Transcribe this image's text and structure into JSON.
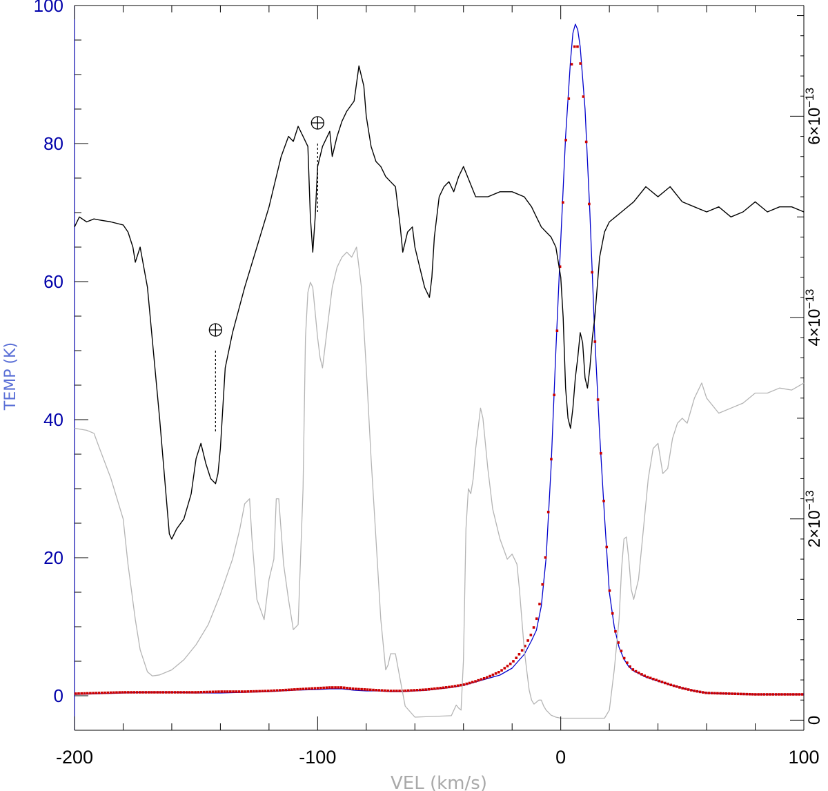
{
  "chart_data": {
    "type": "line",
    "title": "",
    "xlabel": "VEL (km/s)",
    "ylabel": "TEMP (K)",
    "xlim": [
      -200,
      100
    ],
    "ylim": [
      -5,
      100
    ],
    "y2lim": [
      -1e-14,
      7.1e-13
    ],
    "x_ticks": [
      -200,
      -100,
      0,
      100
    ],
    "x_tick_labels": [
      "-200",
      "-100",
      "0",
      "100"
    ],
    "y_ticks": [
      0,
      20,
      40,
      60,
      80,
      100
    ],
    "y_tick_labels": [
      "0",
      "20",
      "40",
      "60",
      "80",
      "100"
    ],
    "y2_ticks": [
      0,
      2e-13,
      4e-13,
      6e-13
    ],
    "y2_tick_labels": [
      {
        "mantissa": "0",
        "exp": ""
      },
      {
        "mantissa": "2×10",
        "exp": "−13"
      },
      {
        "mantissa": "4×10",
        "exp": "−13"
      },
      {
        "mantissa": "6×10",
        "exp": "−13"
      }
    ],
    "grid": false,
    "colors": {
      "frame": "#000000",
      "left_axis": "#0000aa",
      "profile": "#0000cc",
      "fit": "#cc0000",
      "black_spectrum": "#000000",
      "grey_spectrum": "#b4b4b4"
    },
    "series": [
      {
        "axis": "left",
        "style": "line",
        "x": [
          -200,
          -190,
          -180,
          -170,
          -160,
          -150,
          -140,
          -130,
          -120,
          -110,
          -100,
          -95,
          -90,
          -85,
          -80,
          -75,
          -70,
          -65,
          -60,
          -55,
          -50,
          -45,
          -40,
          -35,
          -30,
          -25,
          -20,
          -18,
          -15,
          -12,
          -10,
          -8,
          -6,
          -4,
          -2,
          0,
          2,
          4,
          5,
          6,
          7,
          8,
          10,
          12,
          14,
          16,
          18,
          20,
          22,
          24,
          26,
          28,
          30,
          35,
          40,
          45,
          50,
          55,
          60,
          70,
          80,
          90,
          100
        ],
        "y": [
          0.2,
          0.3,
          0.4,
          0.5,
          0.5,
          0.4,
          0.4,
          0.5,
          0.6,
          0.8,
          0.9,
          1.0,
          1.0,
          0.8,
          0.7,
          0.7,
          0.6,
          0.6,
          0.7,
          0.8,
          1.0,
          1.2,
          1.5,
          2.0,
          2.5,
          3.0,
          4.0,
          4.8,
          6.0,
          8.0,
          9.5,
          13.0,
          20.0,
          33.0,
          50.0,
          66.0,
          81.0,
          92.0,
          96.0,
          97.3,
          96.5,
          94.0,
          85.0,
          70.0,
          52.0,
          38.0,
          26.0,
          15.0,
          10.0,
          7.0,
          5.3,
          4.2,
          3.6,
          2.7,
          2.1,
          1.6,
          1.1,
          0.7,
          0.4,
          0.3,
          0.2,
          0.2,
          0.2
        ]
      },
      {
        "axis": "left",
        "style": "dots",
        "x": [
          -200,
          -190,
          -180,
          -170,
          -160,
          -150,
          -140,
          -130,
          -120,
          -110,
          -100,
          -95,
          -90,
          -85,
          -80,
          -75,
          -70,
          -65,
          -60,
          -55,
          -50,
          -45,
          -40,
          -35,
          -30,
          -25,
          -20,
          -18,
          -15,
          -12,
          -10,
          -8,
          -6,
          -4,
          -2,
          0,
          2,
          4,
          5,
          6,
          7,
          8,
          10,
          12,
          14,
          16,
          18,
          20,
          22,
          24,
          26,
          28,
          30,
          35,
          40,
          45,
          50,
          55,
          60,
          70,
          80,
          90,
          100
        ],
        "y": [
          0.3,
          0.4,
          0.5,
          0.5,
          0.5,
          0.5,
          0.6,
          0.6,
          0.7,
          0.9,
          1.1,
          1.2,
          1.2,
          1.0,
          0.9,
          0.8,
          0.7,
          0.7,
          0.8,
          0.9,
          1.1,
          1.3,
          1.6,
          2.1,
          2.7,
          3.5,
          4.8,
          5.6,
          7.0,
          9.0,
          11.0,
          14.5,
          21.0,
          33.5,
          49.0,
          64.5,
          80.0,
          90.0,
          93.0,
          94.5,
          94.0,
          92.0,
          84.0,
          69.0,
          52.0,
          38.0,
          26.5,
          15.5,
          10.0,
          7.3,
          5.5,
          4.4,
          3.7,
          2.8,
          2.2,
          1.6,
          1.1,
          0.7,
          0.4,
          0.3,
          0.2,
          0.2,
          0.2
        ]
      },
      {
        "axis": "right",
        "style": "line",
        "x": [
          -200,
          -198,
          -195,
          -192,
          -190,
          -185,
          -180,
          -178,
          -176,
          -175,
          -173,
          -170,
          -165,
          -161,
          -160,
          -158,
          -155,
          -152,
          -150,
          -148,
          -146,
          -144,
          -142,
          -141,
          -140,
          -138,
          -135,
          -130,
          -125,
          -120,
          -118,
          -115,
          -112,
          -110,
          -108,
          -106,
          -104,
          -103,
          -102,
          -101,
          -100,
          -98,
          -96,
          -95,
          -94,
          -93,
          -92,
          -90,
          -88,
          -85,
          -83,
          -81,
          -80,
          -78,
          -76,
          -74,
          -72,
          -70,
          -68,
          -66,
          -65,
          -63,
          -61,
          -60,
          -58,
          -56,
          -54,
          -53,
          -52,
          -50,
          -48,
          -46,
          -44,
          -42,
          -40,
          -35,
          -30,
          -25,
          -20,
          -15,
          -12,
          -10,
          -8,
          -6,
          -4,
          -2,
          0,
          1,
          2,
          3,
          4,
          5,
          6,
          7,
          8,
          9,
          10,
          11,
          12,
          13,
          14,
          15,
          16,
          18,
          20,
          25,
          30,
          35,
          40,
          45,
          50,
          55,
          60,
          65,
          70,
          75,
          80,
          85,
          90,
          95,
          100
        ],
        "y": [
          4.9e-13,
          5e-13,
          4.95e-13,
          4.98e-13,
          4.97e-13,
          4.95e-13,
          4.92e-13,
          4.85e-13,
          4.7e-13,
          4.55e-13,
          4.7e-13,
          4.3e-13,
          3e-13,
          1.85e-13,
          1.8e-13,
          1.9e-13,
          2e-13,
          2.25e-13,
          2.6e-13,
          2.75e-13,
          2.55e-13,
          2.4e-13,
          2.35e-13,
          2.45e-13,
          2.7e-13,
          3.5e-13,
          3.85e-13,
          4.3e-13,
          4.7e-13,
          5.1e-13,
          5.3e-13,
          5.6e-13,
          5.8e-13,
          5.75e-13,
          5.9e-13,
          5.8e-13,
          5.7e-13,
          5e-13,
          4.65e-13,
          5e-13,
          5.5e-13,
          5.7e-13,
          5.8e-13,
          5.85e-13,
          5.6e-13,
          5.7e-13,
          5.8e-13,
          5.95e-13,
          6.05e-13,
          6.15e-13,
          6.5e-13,
          6.3e-13,
          6e-13,
          5.7e-13,
          5.55e-13,
          5.5e-13,
          5.4e-13,
          5.35e-13,
          5.3e-13,
          4.9e-13,
          4.65e-13,
          4.85e-13,
          4.9e-13,
          4.7e-13,
          4.5e-13,
          4.3e-13,
          4.2e-13,
          4.4e-13,
          4.8e-13,
          5.2e-13,
          5.3e-13,
          5.35e-13,
          5.25e-13,
          5.4e-13,
          5.5e-13,
          5.2e-13,
          5.2e-13,
          5.25e-13,
          5.25e-13,
          5.2e-13,
          5.1e-13,
          5e-13,
          4.9e-13,
          4.85e-13,
          4.8e-13,
          4.7e-13,
          4.4e-13,
          4e-13,
          3.3e-13,
          3e-13,
          2.9e-13,
          3.1e-13,
          3.4e-13,
          3.6e-13,
          3.85e-13,
          3.75e-13,
          3.4e-13,
          3.3e-13,
          3.5e-13,
          3.8e-13,
          4e-13,
          4.3e-13,
          4.6e-13,
          4.85e-13,
          4.95e-13,
          5.05e-13,
          5.15e-13,
          5.3e-13,
          5.2e-13,
          5.3e-13,
          5.15e-13,
          5.1e-13,
          5.05e-13,
          5.1e-13,
          5e-13,
          5.05e-13,
          5.15e-13,
          5.05e-13,
          5.1e-13,
          5.1e-13,
          5.05e-13
        ]
      },
      {
        "axis": "right",
        "style": "line",
        "x": [
          -200,
          -195,
          -192,
          -190,
          -185,
          -180,
          -178,
          -175,
          -173,
          -170,
          -168,
          -165,
          -160,
          -155,
          -150,
          -145,
          -140,
          -135,
          -132,
          -130,
          -128,
          -127,
          -125,
          -122,
          -120,
          -118,
          -117,
          -116,
          -114,
          -112,
          -110,
          -108,
          -106,
          -105,
          -104,
          -103,
          -102,
          -100,
          -99,
          -98,
          -96,
          -94,
          -92,
          -90,
          -88,
          -86,
          -84,
          -82,
          -80,
          -78,
          -76,
          -74,
          -72,
          -71,
          -70,
          -68,
          -66,
          -64,
          -60,
          -50,
          -45,
          -43,
          -42,
          -41,
          -40,
          -39,
          -38,
          -37,
          -36,
          -35,
          -33,
          -32,
          -30,
          -28,
          -25,
          -22,
          -20,
          -18,
          -17,
          -16,
          -15,
          -14,
          -13,
          -12,
          -11,
          -10,
          -9,
          -8,
          -7,
          -6,
          -4,
          -2,
          0,
          5,
          10,
          15,
          18,
          20,
          22,
          24,
          25,
          26,
          27,
          28,
          29,
          30,
          32,
          34,
          36,
          38,
          40,
          42,
          44,
          46,
          48,
          50,
          52,
          55,
          58,
          60,
          65,
          70,
          75,
          80,
          85,
          90,
          95,
          100
        ],
        "y": [
          2.9e-13,
          2.88e-13,
          2.85e-13,
          2.72e-13,
          2.4e-13,
          2e-13,
          1.55e-13,
          1e-13,
          7e-14,
          4.8e-14,
          4.4e-14,
          4.5e-14,
          5e-14,
          6e-14,
          7.5e-14,
          9.5e-14,
          1.25e-13,
          1.6e-13,
          1.9e-13,
          2.15e-13,
          2.2e-13,
          1.8e-13,
          1.2e-13,
          1e-13,
          1.4e-13,
          1.6e-13,
          2.2e-13,
          2.2e-13,
          1.55e-13,
          1.2e-13,
          9e-14,
          9.5e-14,
          2.3e-13,
          3.8e-13,
          4.25e-13,
          4.35e-13,
          4.3e-13,
          3.8e-13,
          3.6e-13,
          3.5e-13,
          3.9e-13,
          4.3e-13,
          4.5e-13,
          4.6e-13,
          4.65e-13,
          4.6e-13,
          4.7e-13,
          4.3e-13,
          3.5e-13,
          2.6e-13,
          1.8e-13,
          1e-13,
          5e-14,
          5.5e-14,
          6.6e-14,
          6.6e-14,
          4e-14,
          1.4e-14,
          3e-15,
          4e-15,
          4.5e-15,
          1.5e-14,
          1.2e-14,
          1e-14,
          6e-14,
          1.9e-13,
          2.3e-13,
          2.25e-13,
          2.4e-13,
          2.7e-13,
          3.1e-13,
          3e-13,
          2.5e-13,
          2.1e-13,
          1.8e-13,
          1.6e-13,
          1.65e-13,
          1.55e-13,
          1.3e-13,
          1e-13,
          7e-14,
          5e-14,
          3e-14,
          2e-14,
          1.6e-14,
          1.8e-14,
          2e-14,
          2e-14,
          1.4e-14,
          1e-14,
          5e-15,
          3e-15,
          2e-15,
          2e-15,
          2e-15,
          2e-15,
          2e-15,
          1e-14,
          5e-14,
          1e-13,
          1.5e-13,
          1.8e-13,
          1.82e-13,
          1.6e-13,
          1.3e-13,
          1.2e-13,
          1.4e-13,
          1.9e-13,
          2.4e-13,
          2.7e-13,
          2.75e-13,
          2.45e-13,
          2.5e-13,
          2.8e-13,
          2.95e-13,
          3e-13,
          2.95e-13,
          3.2e-13,
          3.35e-13,
          3.2e-13,
          3.05e-13,
          3.1e-13,
          3.15e-13,
          3.25e-13,
          3.25e-13,
          3.3e-13,
          3.28e-13,
          3.35e-13
        ]
      }
    ],
    "annotations": [
      {
        "symbol": "⊕",
        "x": -142,
        "y": 53,
        "line_from": 50,
        "line_to": 38
      },
      {
        "symbol": "⊕",
        "x": -100,
        "y": 83,
        "line_from": 80,
        "line_to": 70
      }
    ]
  }
}
